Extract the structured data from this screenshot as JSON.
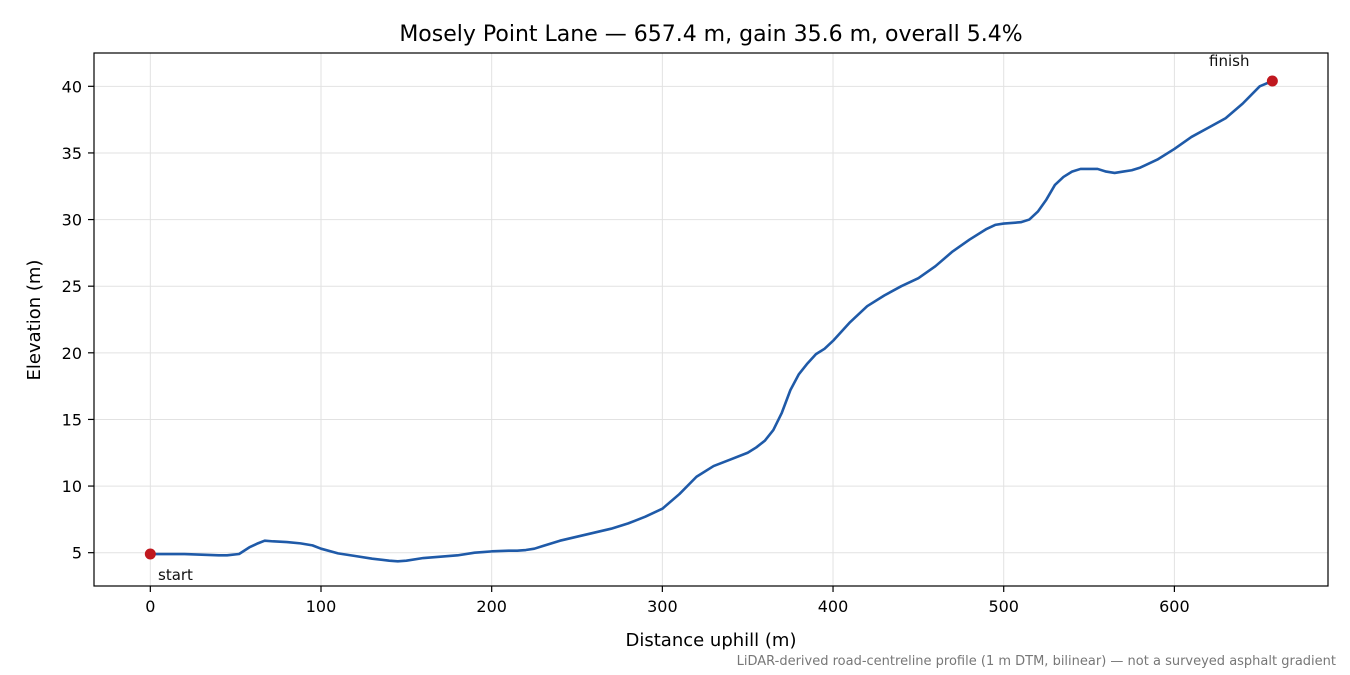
{
  "chart_data": {
    "type": "line",
    "title": "Mosely Point Lane — 657.4 m, gain 35.6 m, overall 5.4%",
    "xlabel": "Distance uphill (m)",
    "ylabel": "Elevation (m)",
    "xlim": [
      -33,
      690
    ],
    "ylim": [
      2.5,
      42.5
    ],
    "xticks": [
      0,
      100,
      200,
      300,
      400,
      500,
      600
    ],
    "yticks": [
      5,
      10,
      15,
      20,
      25,
      30,
      35,
      40
    ],
    "grid": true,
    "line_color": "#1f5aa8",
    "marker_color": "#c0181f",
    "series": [
      {
        "x": [
          0,
          10,
          20,
          30,
          40,
          45,
          52,
          58,
          63,
          67,
          72,
          80,
          88,
          95,
          100,
          110,
          120,
          130,
          140,
          145,
          150,
          160,
          170,
          180,
          190,
          195,
          200,
          210,
          215,
          220,
          225,
          230,
          240,
          250,
          260,
          270,
          280,
          290,
          300,
          310,
          320,
          330,
          340,
          350,
          355,
          360,
          365,
          370,
          375,
          380,
          385,
          390,
          395,
          400,
          410,
          420,
          430,
          440,
          450,
          460,
          470,
          480,
          490,
          495,
          500,
          510,
          515,
          520,
          525,
          530,
          535,
          540,
          545,
          550,
          555,
          560,
          565,
          570,
          575,
          580,
          590,
          600,
          610,
          620,
          630,
          640,
          650,
          657.4
        ],
        "y": [
          4.9,
          4.9,
          4.9,
          4.85,
          4.8,
          4.8,
          4.9,
          5.4,
          5.7,
          5.9,
          5.85,
          5.8,
          5.7,
          5.55,
          5.3,
          4.95,
          4.75,
          4.55,
          4.4,
          4.35,
          4.4,
          4.6,
          4.7,
          4.8,
          5.0,
          5.05,
          5.1,
          5.15,
          5.15,
          5.2,
          5.3,
          5.5,
          5.9,
          6.2,
          6.5,
          6.8,
          7.2,
          7.7,
          8.3,
          9.4,
          10.7,
          11.5,
          12.0,
          12.5,
          12.9,
          13.4,
          14.2,
          15.5,
          17.2,
          18.4,
          19.2,
          19.9,
          20.3,
          20.9,
          22.3,
          23.5,
          24.3,
          25.0,
          25.6,
          26.5,
          27.6,
          28.5,
          29.3,
          29.6,
          29.7,
          29.8,
          30.0,
          30.6,
          31.5,
          32.6,
          33.2,
          33.6,
          33.8,
          33.8,
          33.8,
          33.6,
          33.5,
          33.6,
          33.7,
          33.9,
          34.5,
          35.3,
          36.2,
          36.9,
          37.6,
          38.7,
          40.0,
          40.4
        ]
      }
    ],
    "annotations": {
      "start_label": "start",
      "finish_label": "finish",
      "start_point": {
        "x": 0,
        "y": 4.9
      },
      "finish_point": {
        "x": 657.4,
        "y": 40.4
      }
    },
    "footnote": "LiDAR-derived road-centreline profile (1 m DTM, bilinear) — not a surveyed asphalt gradient"
  }
}
